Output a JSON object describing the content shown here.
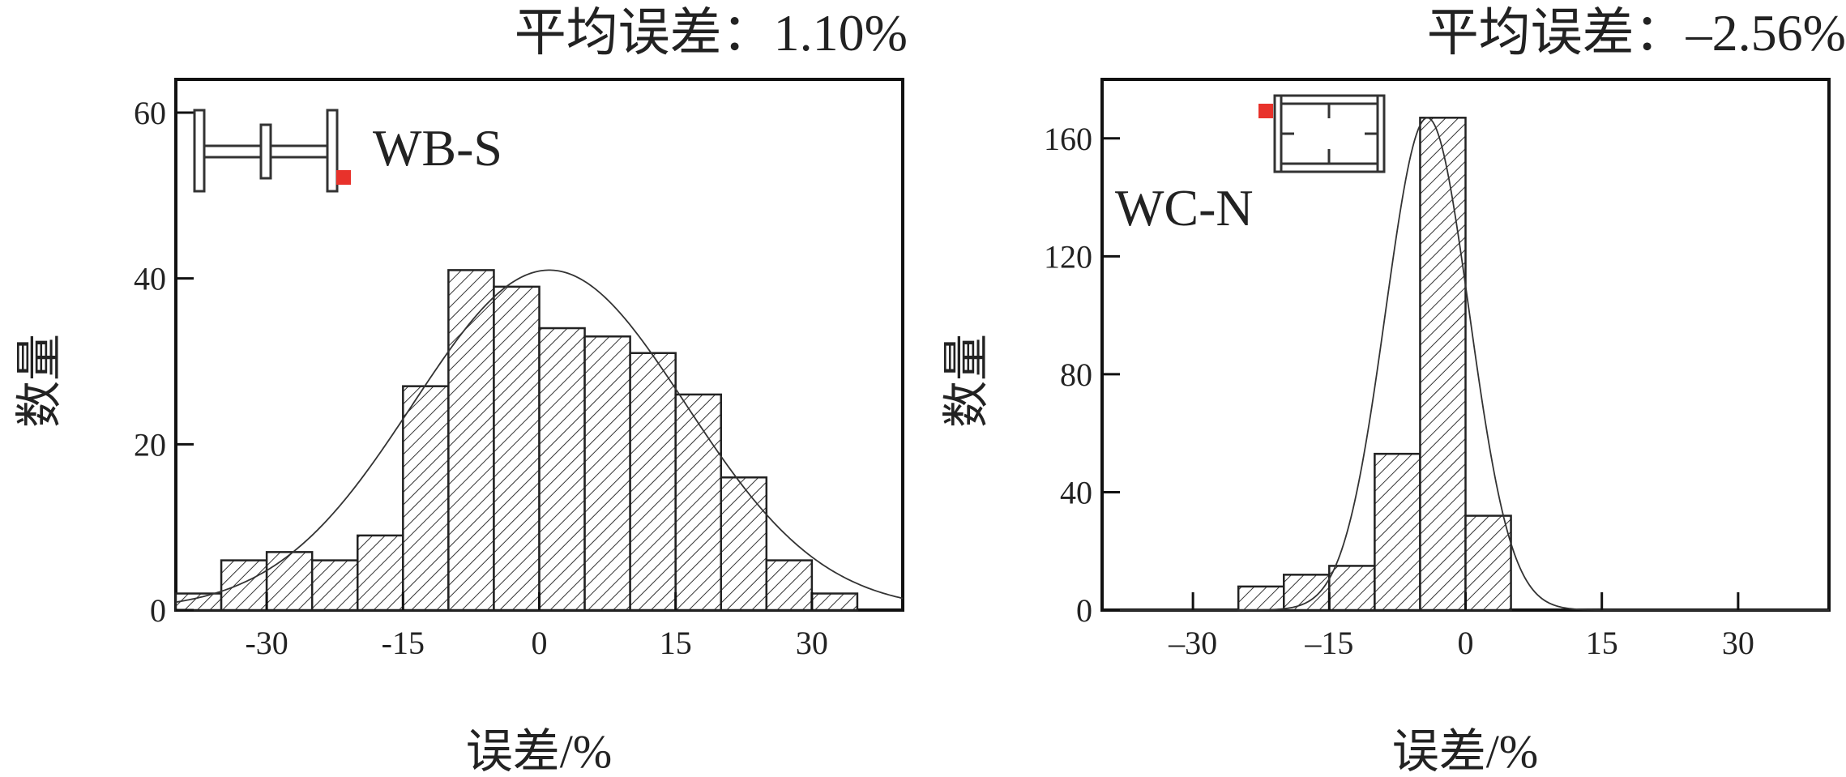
{
  "colors": {
    "marker": "#e8322b",
    "ink": "#222222"
  },
  "chart_data": [
    {
      "type": "bar",
      "title": "平均误差：1.10%",
      "panel_label": "WB-S",
      "xlabel": "误差/%",
      "ylabel": "数量",
      "xlim": [
        -40,
        40
      ],
      "ylim": [
        0,
        64
      ],
      "xticks": [
        "-30",
        "-15",
        "0",
        "15",
        "30"
      ],
      "xtick_values": [
        -30,
        -15,
        0,
        15,
        30
      ],
      "yticks": [
        "0",
        "20",
        "40",
        "60"
      ],
      "ytick_values": [
        0,
        20,
        40,
        60
      ],
      "bin_edges": [
        -40,
        -35,
        -30,
        -25,
        -20,
        -15,
        -10,
        -5,
        0,
        5,
        10,
        15,
        20,
        25,
        30,
        35
      ],
      "values": [
        2,
        6,
        7,
        6,
        9,
        27,
        41,
        39,
        34,
        33,
        31,
        26,
        16,
        6,
        2
      ],
      "fit_curve": {
        "mean": 1.1,
        "peak": 41,
        "sd": 15
      },
      "icon": "wb-section-icon"
    },
    {
      "type": "bar",
      "title": "平均误差：–2.56%",
      "panel_label": "WC-N",
      "xlabel": "误差/%",
      "ylabel": "数量",
      "xlim": [
        -40,
        40
      ],
      "ylim": [
        0,
        180
      ],
      "xticks": [
        "–30",
        "–15",
        "0",
        "15",
        "30"
      ],
      "xtick_values": [
        -30,
        -15,
        0,
        15,
        30
      ],
      "yticks": [
        "0",
        "40",
        "80",
        "120",
        "160"
      ],
      "ytick_values": [
        0,
        40,
        80,
        120,
        160
      ],
      "bin_edges": [
        -25,
        -20,
        -15,
        -10,
        -5,
        0,
        5
      ],
      "values": [
        8,
        12,
        15,
        53,
        167,
        32
      ],
      "fit_curve": {
        "mean": -4.2,
        "peak": 167,
        "sd": 4.6
      },
      "icon": "wc-section-icon"
    }
  ]
}
